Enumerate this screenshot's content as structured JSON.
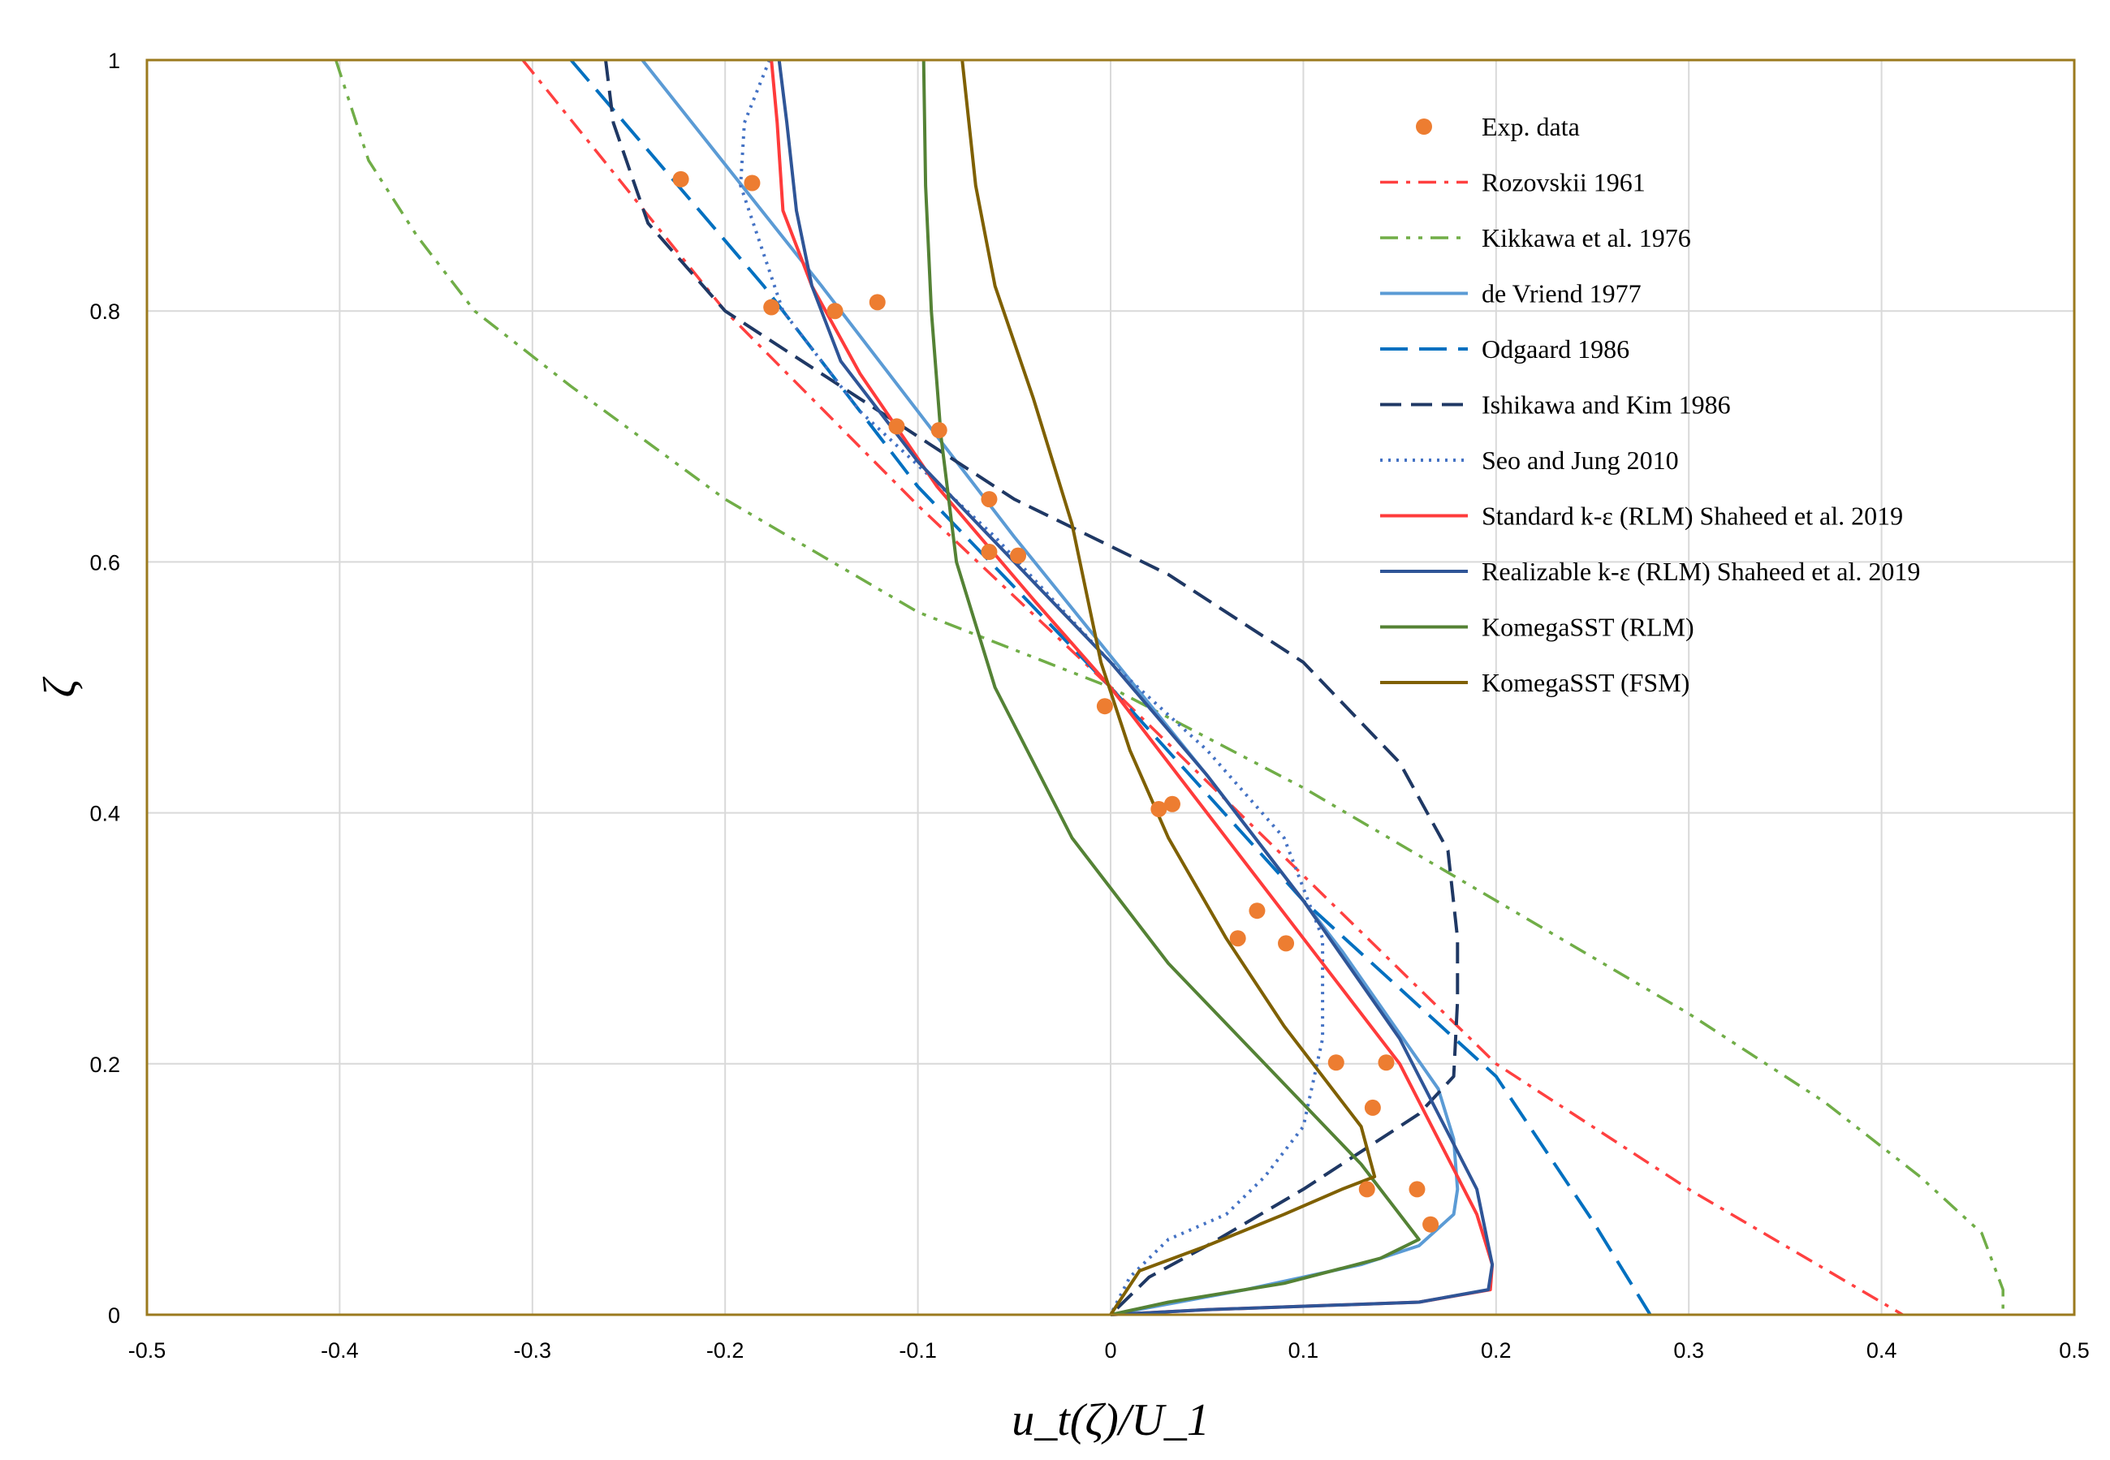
{
  "chart_data": {
    "type": "line",
    "title": "",
    "xlabel": "u_t(ζ)/U_1",
    "ylabel": "ζ",
    "xlim": [
      -0.5,
      0.5
    ],
    "ylim": [
      0,
      1
    ],
    "grid": true,
    "legend_position": "top-right",
    "x_ticks": [
      "-0.5",
      "-0.4",
      "-0.3",
      "-0.2",
      "-0.1",
      "0",
      "0.1",
      "0.2",
      "0.3",
      "0.4",
      "0.5"
    ],
    "y_ticks": [
      "0",
      "0.2",
      "0.4",
      "0.6",
      "0.8",
      "1"
    ],
    "series": [
      {
        "name": "Exp. data",
        "kind": "points",
        "color": "#ED7D31",
        "points": [
          [
            -0.223,
            0.905
          ],
          [
            -0.186,
            0.902
          ],
          [
            -0.176,
            0.803
          ],
          [
            -0.143,
            0.8
          ],
          [
            -0.121,
            0.807
          ],
          [
            -0.111,
            0.708
          ],
          [
            -0.089,
            0.705
          ],
          [
            -0.063,
            0.65
          ],
          [
            -0.063,
            0.608
          ],
          [
            -0.048,
            0.605
          ],
          [
            -0.003,
            0.485
          ],
          [
            0.025,
            0.403
          ],
          [
            0.032,
            0.407
          ],
          [
            0.076,
            0.322
          ],
          [
            0.066,
            0.3
          ],
          [
            0.091,
            0.296
          ],
          [
            0.117,
            0.201
          ],
          [
            0.143,
            0.201
          ],
          [
            0.136,
            0.165
          ],
          [
            0.133,
            0.1
          ],
          [
            0.159,
            0.1
          ],
          [
            0.166,
            0.072
          ]
        ]
      },
      {
        "name": "Rozovskii 1961",
        "kind": "line",
        "color": "#FF4040",
        "dash": "22,10,5,10",
        "width": 3.5,
        "points": [
          [
            -0.305,
            1.0
          ],
          [
            -0.2,
            0.8
          ],
          [
            -0.1,
            0.645
          ],
          [
            0.0,
            0.5
          ],
          [
            0.1,
            0.35
          ],
          [
            0.2,
            0.2
          ],
          [
            0.3,
            0.1
          ],
          [
            0.35,
            0.055
          ],
          [
            0.411,
            0.0
          ]
        ]
      },
      {
        "name": "Kikkawa et al. 1976",
        "kind": "line",
        "color": "#70AD47",
        "dash": "22,10,5,10,5,10",
        "width": 3.5,
        "points": [
          [
            -0.402,
            1.0
          ],
          [
            -0.385,
            0.92
          ],
          [
            -0.36,
            0.86
          ],
          [
            -0.33,
            0.8
          ],
          [
            -0.28,
            0.74
          ],
          [
            -0.2,
            0.65
          ],
          [
            -0.1,
            0.56
          ],
          [
            0.0,
            0.5
          ],
          [
            0.1,
            0.42
          ],
          [
            0.2,
            0.33
          ],
          [
            0.3,
            0.24
          ],
          [
            0.37,
            0.17
          ],
          [
            0.42,
            0.11
          ],
          [
            0.452,
            0.065
          ],
          [
            0.463,
            0.02
          ],
          [
            0.463,
            0.0
          ]
        ]
      },
      {
        "name": "de Vriend 1977",
        "kind": "line",
        "color": "#5B9BD5",
        "dash": "",
        "width": 4,
        "points": [
          [
            -0.243,
            1.0
          ],
          [
            -0.15,
            0.82
          ],
          [
            -0.05,
            0.62
          ],
          [
            0.05,
            0.43
          ],
          [
            0.12,
            0.29
          ],
          [
            0.17,
            0.18
          ],
          [
            0.178,
            0.14
          ],
          [
            0.18,
            0.1
          ],
          [
            0.178,
            0.08
          ],
          [
            0.16,
            0.055
          ],
          [
            0.13,
            0.04
          ],
          [
            0.07,
            0.02
          ],
          [
            0.0,
            0.0
          ]
        ]
      },
      {
        "name": "Odgaard 1986",
        "kind": "line",
        "color": "#0070C0",
        "dash": "34,14",
        "width": 4,
        "points": [
          [
            -0.28,
            1.0
          ],
          [
            -0.18,
            0.82
          ],
          [
            -0.1,
            0.66
          ],
          [
            0.0,
            0.5
          ],
          [
            0.1,
            0.33
          ],
          [
            0.15,
            0.26
          ],
          [
            0.2,
            0.19
          ],
          [
            0.25,
            0.075
          ],
          [
            0.28,
            0.0
          ]
        ]
      },
      {
        "name": "Ishikawa and Kim 1986",
        "kind": "line",
        "color": "#1F3864",
        "dash": "26,12",
        "width": 4,
        "points": [
          [
            -0.262,
            1.0
          ],
          [
            -0.258,
            0.95
          ],
          [
            -0.24,
            0.87
          ],
          [
            -0.2,
            0.8
          ],
          [
            -0.13,
            0.73
          ],
          [
            -0.05,
            0.65
          ],
          [
            0.03,
            0.59
          ],
          [
            0.1,
            0.52
          ],
          [
            0.15,
            0.44
          ],
          [
            0.175,
            0.37
          ],
          [
            0.18,
            0.3
          ],
          [
            0.18,
            0.25
          ],
          [
            0.178,
            0.19
          ],
          [
            0.16,
            0.16
          ],
          [
            0.1,
            0.1
          ],
          [
            0.05,
            0.055
          ],
          [
            0.02,
            0.03
          ],
          [
            0.0,
            0.0
          ]
        ]
      },
      {
        "name": "Seo and Jung 2010",
        "kind": "line",
        "color": "#4472C4",
        "dash": "3,7",
        "width": 4,
        "points": [
          [
            -0.177,
            1.0
          ],
          [
            -0.19,
            0.95
          ],
          [
            -0.192,
            0.9
          ],
          [
            -0.17,
            0.8
          ],
          [
            -0.13,
            0.72
          ],
          [
            -0.06,
            0.62
          ],
          [
            0.0,
            0.52
          ],
          [
            0.05,
            0.45
          ],
          [
            0.09,
            0.38
          ],
          [
            0.11,
            0.3
          ],
          [
            0.11,
            0.22
          ],
          [
            0.1,
            0.15
          ],
          [
            0.08,
            0.11
          ],
          [
            0.06,
            0.08
          ],
          [
            0.03,
            0.06
          ],
          [
            0.01,
            0.03
          ],
          [
            0.0,
            0.0
          ]
        ]
      },
      {
        "name": "Standard k-ε (RLM) Shaheed et al. 2019",
        "kind": "line",
        "color": "#FF3B3B",
        "dash": "",
        "width": 4,
        "points": [
          [
            -0.176,
            1.0
          ],
          [
            -0.173,
            0.95
          ],
          [
            -0.17,
            0.88
          ],
          [
            -0.155,
            0.82
          ],
          [
            -0.13,
            0.75
          ],
          [
            -0.09,
            0.66
          ],
          [
            -0.04,
            0.57
          ],
          [
            0.0,
            0.5
          ],
          [
            0.05,
            0.4
          ],
          [
            0.1,
            0.3
          ],
          [
            0.15,
            0.2
          ],
          [
            0.19,
            0.08
          ],
          [
            0.198,
            0.04
          ],
          [
            0.197,
            0.02
          ],
          [
            0.16,
            0.01
          ],
          [
            0.05,
            0.004
          ],
          [
            0.0,
            0.0
          ]
        ]
      },
      {
        "name": "Realizable k-ε (RLM) Shaheed et al. 2019",
        "kind": "line",
        "color": "#2F5597",
        "dash": "",
        "width": 4,
        "points": [
          [
            -0.172,
            1.0
          ],
          [
            -0.168,
            0.95
          ],
          [
            -0.163,
            0.88
          ],
          [
            -0.155,
            0.82
          ],
          [
            -0.14,
            0.76
          ],
          [
            -0.1,
            0.68
          ],
          [
            -0.05,
            0.6
          ],
          [
            0.0,
            0.52
          ],
          [
            0.05,
            0.43
          ],
          [
            0.1,
            0.33
          ],
          [
            0.15,
            0.22
          ],
          [
            0.19,
            0.1
          ],
          [
            0.198,
            0.04
          ],
          [
            0.196,
            0.02
          ],
          [
            0.16,
            0.01
          ],
          [
            0.05,
            0.004
          ],
          [
            0.0,
            0.0
          ]
        ]
      },
      {
        "name": "KomegaSST (RLM)",
        "kind": "line",
        "color": "#548235",
        "dash": "",
        "width": 4,
        "points": [
          [
            -0.097,
            1.0
          ],
          [
            -0.096,
            0.9
          ],
          [
            -0.093,
            0.8
          ],
          [
            -0.088,
            0.7
          ],
          [
            -0.08,
            0.6
          ],
          [
            -0.06,
            0.5
          ],
          [
            -0.02,
            0.38
          ],
          [
            0.03,
            0.28
          ],
          [
            0.08,
            0.2
          ],
          [
            0.13,
            0.12
          ],
          [
            0.16,
            0.06
          ],
          [
            0.14,
            0.045
          ],
          [
            0.09,
            0.025
          ],
          [
            0.03,
            0.01
          ],
          [
            0.0,
            0.0
          ]
        ]
      },
      {
        "name": "KomegaSST (FSM)",
        "kind": "line",
        "color": "#7F6000",
        "dash": "",
        "width": 4,
        "points": [
          [
            -0.077,
            1.0
          ],
          [
            -0.07,
            0.9
          ],
          [
            -0.06,
            0.82
          ],
          [
            -0.04,
            0.73
          ],
          [
            -0.02,
            0.63
          ],
          [
            -0.005,
            0.52
          ],
          [
            0.01,
            0.45
          ],
          [
            0.03,
            0.38
          ],
          [
            0.06,
            0.3
          ],
          [
            0.09,
            0.23
          ],
          [
            0.13,
            0.15
          ],
          [
            0.137,
            0.11
          ],
          [
            0.12,
            0.1
          ],
          [
            0.09,
            0.08
          ],
          [
            0.05,
            0.055
          ],
          [
            0.015,
            0.035
          ],
          [
            0.0,
            0.0
          ]
        ]
      }
    ]
  }
}
